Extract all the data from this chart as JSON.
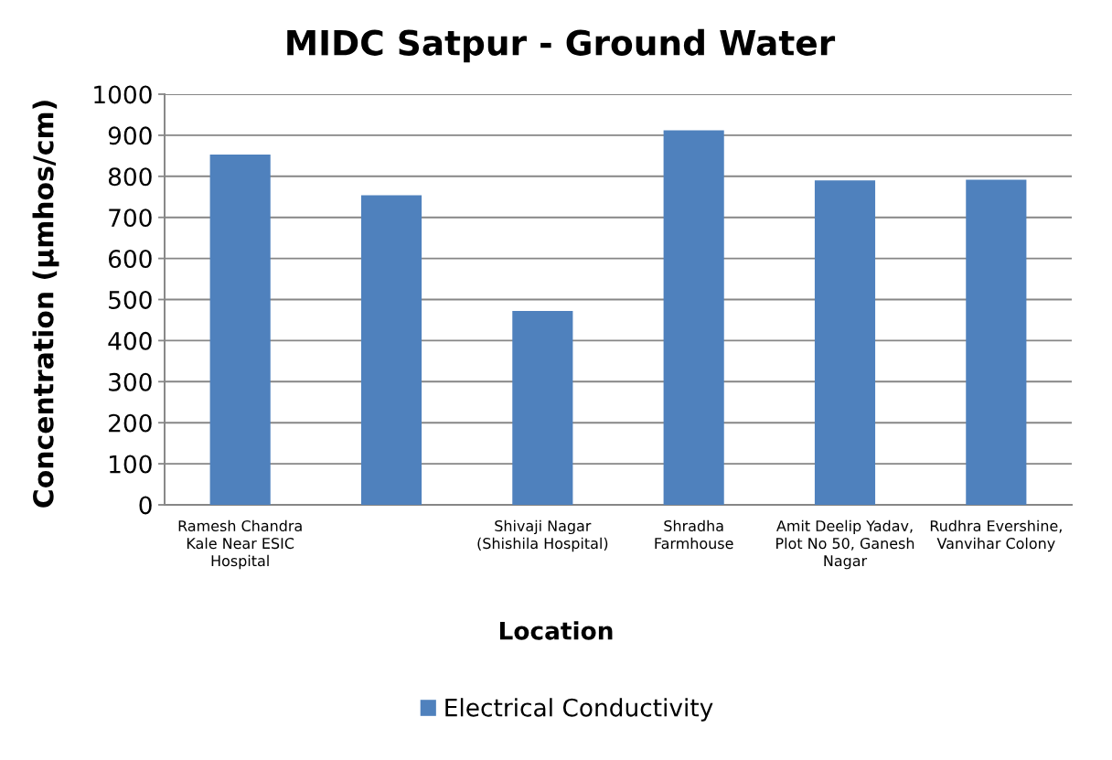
{
  "chart_data": {
    "type": "bar",
    "title": "MIDC Satpur - Ground Water",
    "xlabel": "Location",
    "ylabel": "Concentration (µmhos/cm)",
    "categories": [
      "Ramesh Chandra Kale Near ESIC Hospital",
      null,
      "Shivaji Nagar (Shishila Hospital)",
      "Shradha Farmhouse",
      "Amit Deelip Yadav, Plot No 50, Ganesh Nagar",
      "Rudhra Evershine, Vanvihar Colony"
    ],
    "series": [
      {
        "name": "Electrical Conductivity",
        "color": "#4f81bd",
        "values": [
          853,
          754,
          472,
          912,
          790,
          792
        ]
      }
    ],
    "ylim": [
      0,
      1000
    ],
    "yticks": [
      0,
      100,
      200,
      300,
      400,
      500,
      600,
      700,
      800,
      900,
      1000
    ],
    "grid": "y",
    "legend": "bottom"
  }
}
